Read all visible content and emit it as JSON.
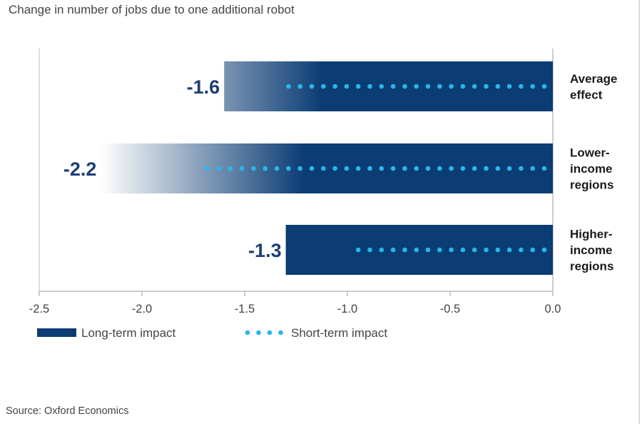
{
  "chart_data": {
    "type": "bar",
    "orientation": "horizontal",
    "title": "Change in number of jobs due to one additional robot",
    "categories": [
      [
        "Average",
        "effect"
      ],
      [
        "Lower-",
        "income",
        "regions"
      ],
      [
        "Higher-",
        "income",
        "regions"
      ]
    ],
    "series": [
      {
        "name": "Long-term impact",
        "values": [
          -1.6,
          -2.2,
          -1.3
        ],
        "data_labels": [
          "-1.6",
          "-2.2",
          "-1.3"
        ]
      },
      {
        "name": "Short-term impact",
        "values": [
          -1.3,
          -1.7,
          -1.0
        ]
      }
    ],
    "x_ticks": [
      "-2.5",
      "-2.0",
      "-1.5",
      "-1.0",
      "-0.5",
      "0.0"
    ],
    "x_tick_values": [
      -2.5,
      -2.0,
      -1.5,
      -1.0,
      -0.5,
      0.0
    ],
    "xlim": [
      -2.5,
      0.0
    ],
    "grid": false,
    "legend_position": "bottom-left",
    "colors": {
      "long_term": "#0b3c74",
      "short_term": "#29b6ea",
      "value_label": "#1d3f73"
    }
  },
  "source_note": "Source: Oxford Economics"
}
